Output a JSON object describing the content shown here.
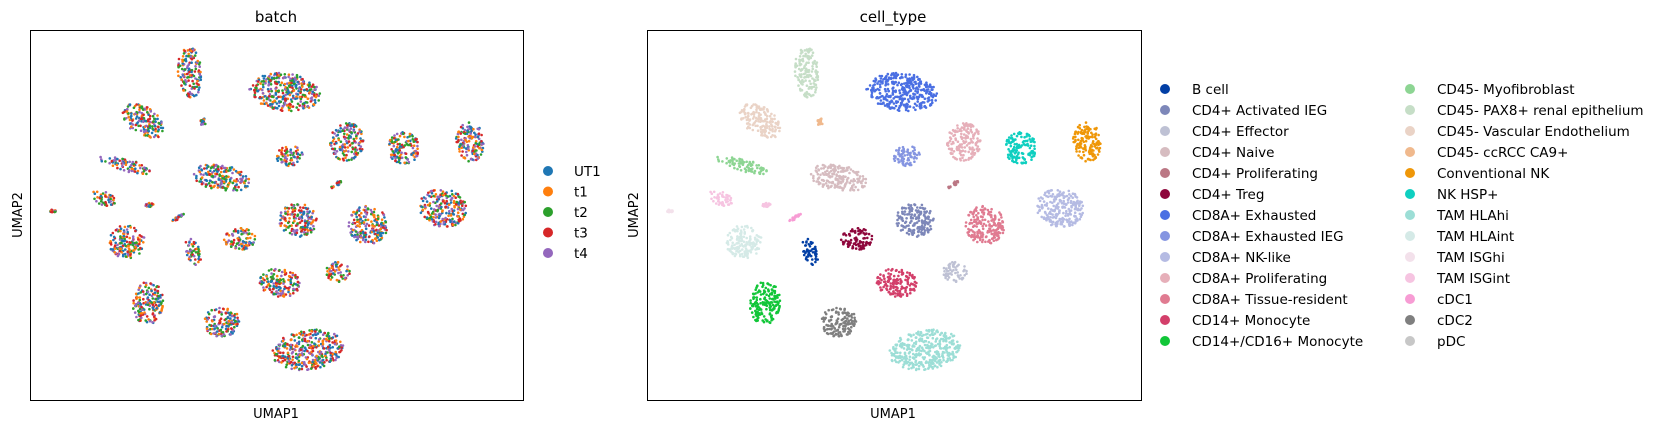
{
  "chart_data": [
    {
      "type": "scatter",
      "title": "batch",
      "xlabel": "UMAP1",
      "ylabel": "UMAP2",
      "xticks": [],
      "yticks": [],
      "grid": false,
      "legend_position": "right",
      "legend": [
        {
          "label": "UT1",
          "color": "#1f77b4"
        },
        {
          "label": "t1",
          "color": "#ff7f0e"
        },
        {
          "label": "t2",
          "color": "#2ca02c"
        },
        {
          "label": "t3",
          "color": "#d62728"
        },
        {
          "label": "t4",
          "color": "#9467bd"
        }
      ]
    },
    {
      "type": "scatter",
      "title": "cell_type",
      "xlabel": "UMAP1",
      "ylabel": "UMAP2",
      "xticks": [],
      "yticks": [],
      "grid": false,
      "legend_position": "right",
      "legend": [
        {
          "label": "B cell",
          "color": "#023fa5"
        },
        {
          "label": "CD4+ Activated IEG",
          "color": "#7d87b9"
        },
        {
          "label": "CD4+ Effector",
          "color": "#bec1d4"
        },
        {
          "label": "CD4+ Naive",
          "color": "#d6bcc0"
        },
        {
          "label": "CD4+ Proliferating",
          "color": "#bb7784"
        },
        {
          "label": "CD4+ Treg",
          "color": "#8e063b"
        },
        {
          "label": "CD8A+ Exhausted",
          "color": "#4a6fe3"
        },
        {
          "label": "CD8A+ Exhausted IEG",
          "color": "#8595e1"
        },
        {
          "label": "CD8A+ NK-like",
          "color": "#b5bbe3"
        },
        {
          "label": "CD8A+ Proliferating",
          "color": "#e6afb9"
        },
        {
          "label": "CD8A+ Tissue-resident",
          "color": "#e07b91"
        },
        {
          "label": "CD14+ Monocyte",
          "color": "#d33f6a"
        },
        {
          "label": "CD14+/CD16+ Monocyte",
          "color": "#11c638"
        },
        {
          "label": "CD45- Myofibroblast",
          "color": "#8dd593"
        },
        {
          "label": "CD45- PAX8+ renal epithelium",
          "color": "#c6dec7"
        },
        {
          "label": "CD45- Vascular Endothelium",
          "color": "#ead3c6"
        },
        {
          "label": "CD45- ccRCC CA9+",
          "color": "#f0b98d"
        },
        {
          "label": "Conventional NK",
          "color": "#ef9708"
        },
        {
          "label": "NK HSP+",
          "color": "#0fcfc0"
        },
        {
          "label": "TAM HLAhi",
          "color": "#9cded6"
        },
        {
          "label": "TAM HLAint",
          "color": "#d5eae7"
        },
        {
          "label": "TAM ISGhi",
          "color": "#f3e1eb"
        },
        {
          "label": "TAM ISGint",
          "color": "#f6c4e1"
        },
        {
          "label": "cDC1",
          "color": "#f79cd4"
        },
        {
          "label": "cDC2",
          "color": "#7f7f7f"
        },
        {
          "label": "pDC",
          "color": "#c7c7c7"
        }
      ]
    }
  ]
}
